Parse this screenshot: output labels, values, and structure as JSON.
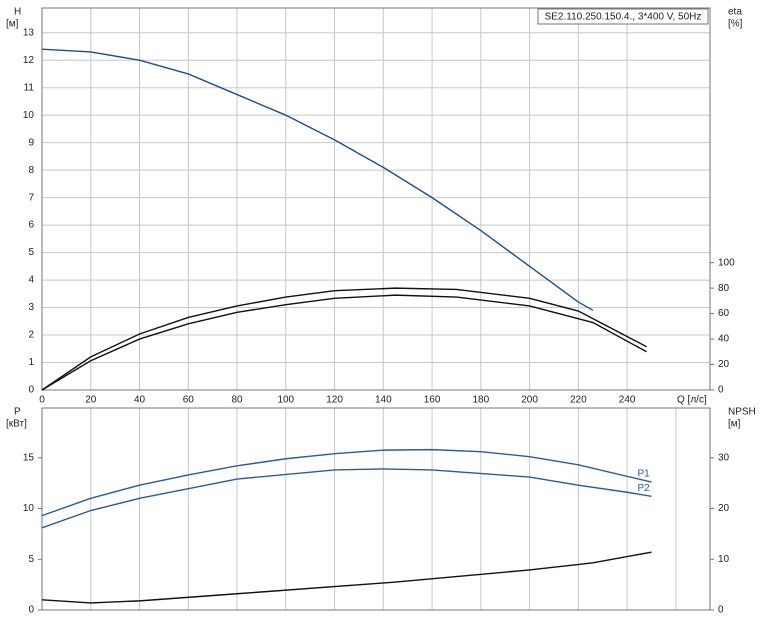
{
  "chart_data": [
    {
      "type": "line",
      "title": "SE2.110.250.150.4., 3*400 V, 50Hz",
      "y_label": "H",
      "y_unit": "[м]",
      "y2_label": "eta",
      "y2_unit": "[%]",
      "x_label": "Q [л/с]",
      "xlim": [
        0,
        274
      ],
      "xticks": [
        0,
        20,
        40,
        60,
        80,
        100,
        120,
        140,
        160,
        180,
        200,
        220,
        240
      ],
      "ylim": [
        0,
        13.9
      ],
      "yticks": [
        0,
        1,
        2,
        3,
        4,
        5,
        6,
        7,
        8,
        9,
        10,
        11,
        12,
        13
      ],
      "y2lim": [
        0,
        300
      ],
      "y2ticks": [
        0,
        20,
        40,
        60,
        80,
        100
      ],
      "grid": "both",
      "show_x_labels": true,
      "series": [
        {
          "color": "#1f4e8c",
          "x": [
            0,
            20,
            40,
            60,
            80,
            100,
            120,
            140,
            160,
            180,
            200,
            220,
            226
          ],
          "values": [
            12.4,
            12.3,
            12.0,
            11.5,
            10.75,
            10.0,
            9.1,
            8.1,
            7.0,
            5.8,
            4.5,
            3.2,
            2.9
          ]
        },
        {
          "color": "#111111",
          "axis": "y2",
          "x": [
            0,
            20,
            40,
            60,
            80,
            100,
            120,
            145,
            170,
            200,
            220,
            248
          ],
          "values": [
            0,
            26,
            44,
            57,
            66,
            73,
            78,
            80,
            79,
            72,
            62,
            34
          ]
        },
        {
          "color": "#111111",
          "axis": "y2",
          "x": [
            0,
            20,
            40,
            60,
            80,
            100,
            120,
            145,
            170,
            200,
            226,
            248
          ],
          "values": [
            0,
            23,
            40,
            52,
            61,
            67,
            72,
            74.5,
            73,
            66,
            53,
            30
          ]
        }
      ]
    },
    {
      "type": "line",
      "y_label": "P",
      "y_unit": "[кВт]",
      "y2_label": "NPSH",
      "y2_unit": "[м]",
      "xlim": [
        0,
        274
      ],
      "xticks": [
        0,
        20,
        40,
        60,
        80,
        100,
        120,
        140,
        160,
        180,
        200,
        220,
        240,
        260
      ],
      "ylim": [
        0,
        19.9
      ],
      "yticks": [
        0,
        5,
        10,
        15
      ],
      "y2lim": [
        0,
        39.8
      ],
      "y2ticks": [
        0,
        10,
        20,
        30
      ],
      "grid": "x",
      "show_x_labels": false,
      "series": [
        {
          "name": "P1",
          "color": "#2b5c99",
          "x": [
            0,
            20,
            40,
            60,
            80,
            100,
            120,
            140,
            160,
            180,
            200,
            220,
            250
          ],
          "values": [
            9.3,
            11.0,
            12.3,
            13.3,
            14.2,
            14.9,
            15.4,
            15.75,
            15.8,
            15.6,
            15.1,
            14.3,
            12.6
          ]
        },
        {
          "name": "P2",
          "color": "#2b5c99",
          "x": [
            0,
            20,
            40,
            80,
            120,
            140,
            160,
            200,
            220,
            240,
            250
          ],
          "values": [
            8.1,
            9.8,
            11.0,
            12.9,
            13.8,
            13.9,
            13.8,
            13.1,
            12.3,
            11.6,
            11.2
          ]
        },
        {
          "color": "#111111",
          "axis": "y2",
          "x": [
            0,
            20,
            40,
            80,
            145,
            200,
            226,
            250
          ],
          "values": [
            2.0,
            1.4,
            1.8,
            3.2,
            5.5,
            7.9,
            9.3,
            11.4
          ]
        }
      ]
    }
  ]
}
